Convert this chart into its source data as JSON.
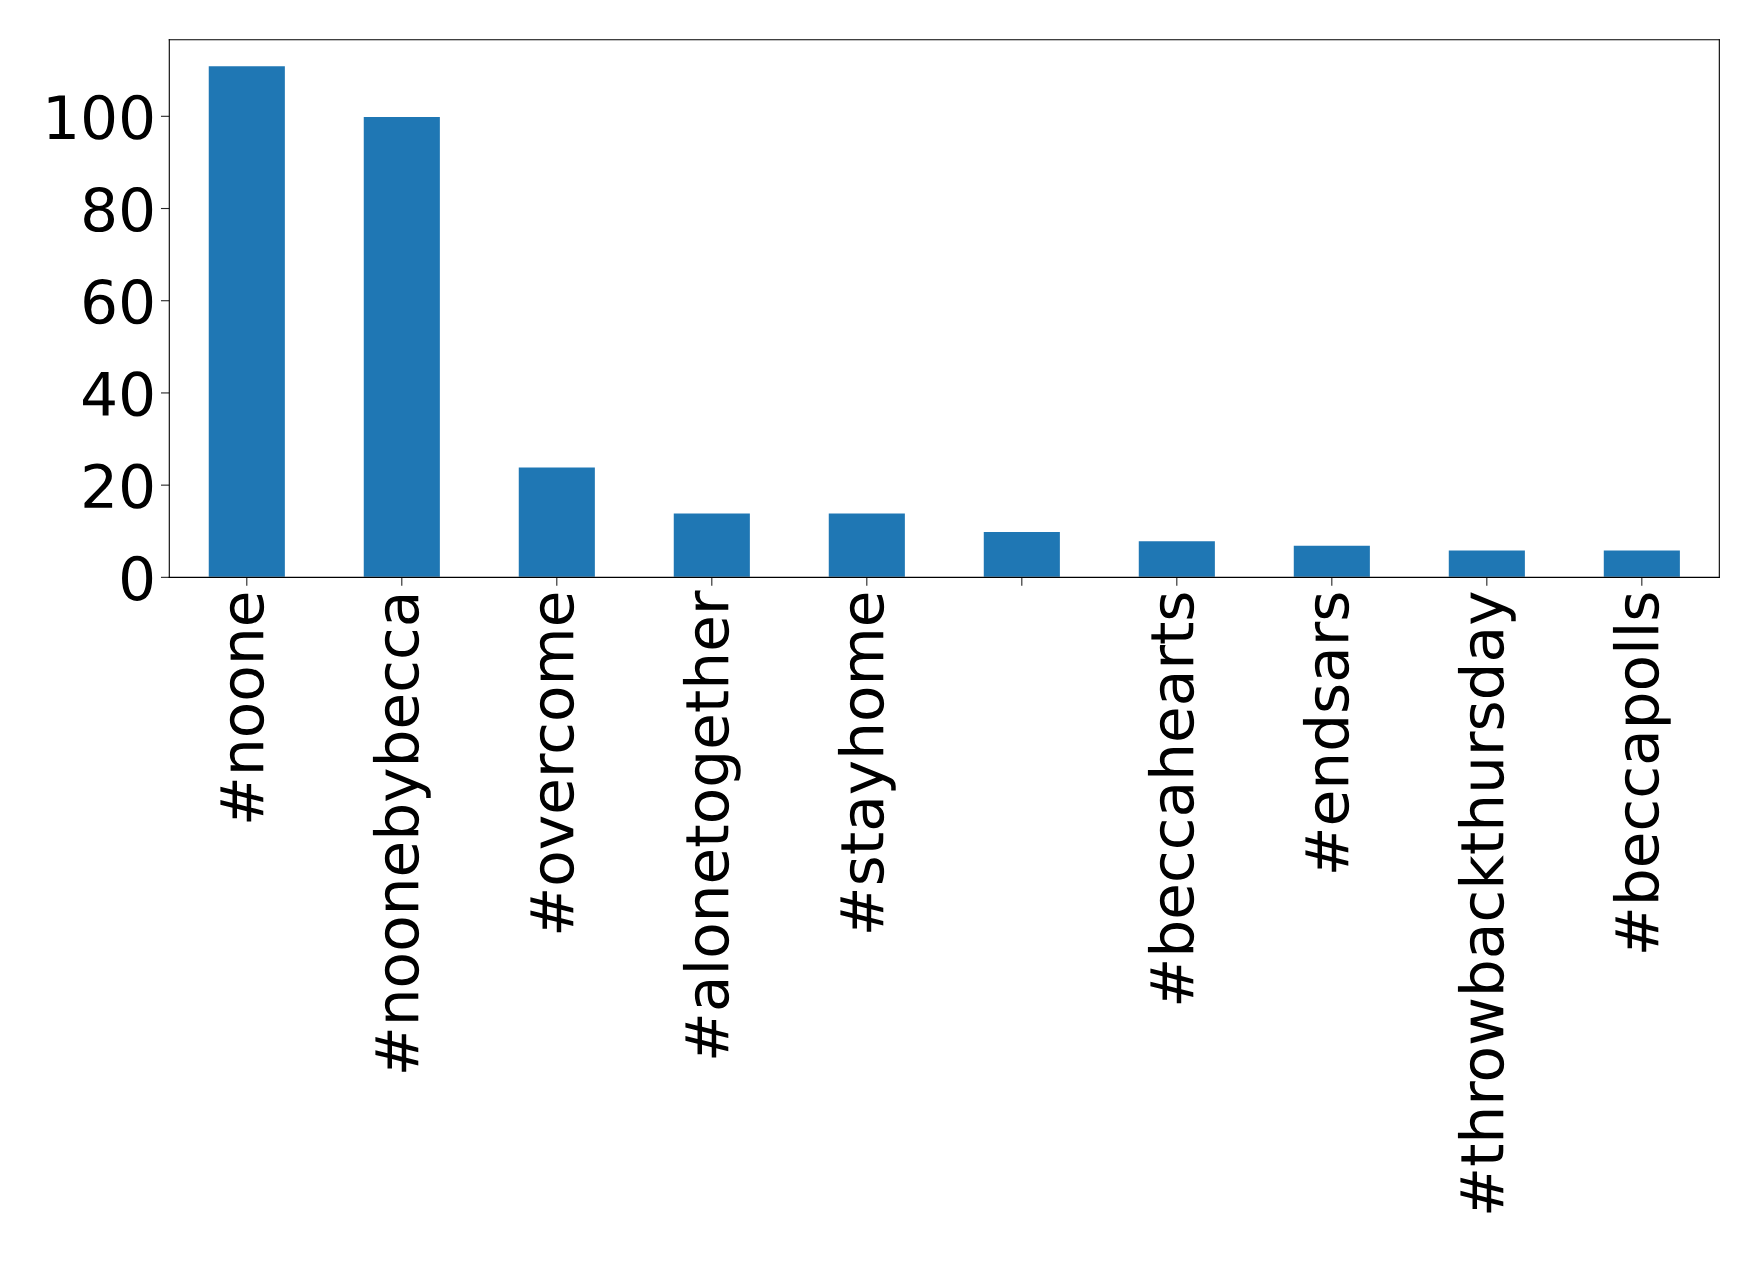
{
  "chart_data": {
    "type": "bar",
    "categories": [
      "#noone",
      "#noonebybecca",
      "#overcome",
      "#alonetogether",
      "#stayhome",
      null,
      "#beccahearts",
      "#endsars",
      "#throwbackthursday",
      "#beccapolls"
    ],
    "values": [
      111,
      100,
      24,
      14,
      14,
      10,
      8,
      7,
      6,
      6
    ],
    "color": "#1f77b4",
    "ylim": [
      0,
      116.6
    ],
    "yticks": [
      0,
      20,
      40,
      60,
      80,
      100
    ],
    "grid": false
  }
}
